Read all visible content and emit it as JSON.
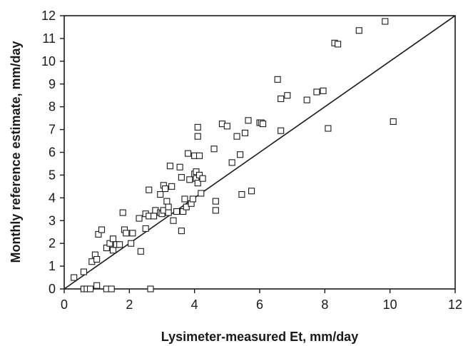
{
  "chart_data": {
    "type": "scatter",
    "title": "",
    "xlabel": "Lysimeter-measured Et, mm/day",
    "ylabel": "Monthly reference estimate, mm/day",
    "xlim": [
      0,
      12
    ],
    "ylim": [
      0,
      12
    ],
    "xticks": [
      "0",
      "2",
      "4",
      "6",
      "8",
      "10",
      "12"
    ],
    "yticks": [
      "0",
      "1",
      "2",
      "3",
      "4",
      "5",
      "6",
      "7",
      "8",
      "9",
      "10",
      "11",
      "12"
    ],
    "grid": false,
    "legend": "none",
    "reference_line": {
      "type": "1:1",
      "from": [
        0,
        0
      ],
      "to": [
        12,
        12
      ]
    },
    "marker": "open-square",
    "series": [
      {
        "points": [
          [
            0.3,
            0.5
          ],
          [
            0.6,
            0.75
          ],
          [
            0.6,
            0.0
          ],
          [
            0.7,
            0.0
          ],
          [
            0.8,
            0.0
          ],
          [
            0.85,
            1.2
          ],
          [
            0.95,
            1.5
          ],
          [
            1.0,
            0.15
          ],
          [
            1.0,
            1.3
          ],
          [
            1.05,
            2.4
          ],
          [
            1.15,
            2.6
          ],
          [
            1.3,
            1.8
          ],
          [
            1.3,
            0.0
          ],
          [
            1.4,
            2.0
          ],
          [
            1.45,
            0.0
          ],
          [
            1.5,
            2.2
          ],
          [
            1.5,
            1.7
          ],
          [
            1.6,
            1.95
          ],
          [
            1.7,
            1.95
          ],
          [
            1.8,
            3.35
          ],
          [
            1.85,
            2.6
          ],
          [
            1.9,
            2.45
          ],
          [
            2.05,
            2.0
          ],
          [
            2.1,
            2.45
          ],
          [
            2.3,
            3.1
          ],
          [
            2.35,
            1.65
          ],
          [
            2.5,
            3.3
          ],
          [
            2.5,
            2.65
          ],
          [
            2.6,
            4.35
          ],
          [
            2.6,
            3.2
          ],
          [
            2.65,
            0.0
          ],
          [
            2.75,
            3.2
          ],
          [
            2.8,
            3.45
          ],
          [
            2.95,
            3.35
          ],
          [
            2.95,
            4.15
          ],
          [
            3.0,
            3.3
          ],
          [
            3.05,
            4.55
          ],
          [
            3.05,
            3.45
          ],
          [
            3.1,
            4.4
          ],
          [
            3.15,
            3.85
          ],
          [
            3.2,
            3.6
          ],
          [
            3.2,
            3.35
          ],
          [
            3.25,
            5.4
          ],
          [
            3.3,
            4.5
          ],
          [
            3.35,
            3.0
          ],
          [
            3.45,
            3.4
          ],
          [
            3.55,
            5.35
          ],
          [
            3.6,
            4.9
          ],
          [
            3.6,
            2.55
          ],
          [
            3.65,
            3.4
          ],
          [
            3.7,
            3.95
          ],
          [
            3.75,
            3.6
          ],
          [
            3.8,
            5.95
          ],
          [
            3.85,
            4.8
          ],
          [
            3.9,
            3.75
          ],
          [
            3.95,
            3.95
          ],
          [
            4.0,
            5.85
          ],
          [
            4.0,
            5.05
          ],
          [
            4.05,
            5.15
          ],
          [
            4.05,
            4.85
          ],
          [
            4.1,
            7.1
          ],
          [
            4.1,
            6.7
          ],
          [
            4.1,
            4.65
          ],
          [
            4.15,
            5.85
          ],
          [
            4.15,
            5.0
          ],
          [
            4.2,
            4.2
          ],
          [
            4.25,
            4.85
          ],
          [
            4.6,
            6.15
          ],
          [
            4.65,
            3.85
          ],
          [
            4.65,
            3.45
          ],
          [
            4.85,
            7.25
          ],
          [
            5.0,
            7.15
          ],
          [
            5.15,
            5.55
          ],
          [
            5.3,
            6.7
          ],
          [
            5.4,
            5.9
          ],
          [
            5.45,
            4.15
          ],
          [
            5.55,
            6.85
          ],
          [
            5.65,
            7.4
          ],
          [
            5.75,
            4.3
          ],
          [
            6.0,
            7.3
          ],
          [
            6.05,
            7.3
          ],
          [
            6.1,
            7.25
          ],
          [
            6.55,
            9.2
          ],
          [
            6.65,
            6.95
          ],
          [
            6.65,
            8.35
          ],
          [
            6.85,
            8.5
          ],
          [
            7.45,
            8.3
          ],
          [
            7.75,
            8.65
          ],
          [
            7.95,
            8.7
          ],
          [
            8.1,
            7.05
          ],
          [
            8.3,
            10.8
          ],
          [
            8.4,
            10.75
          ],
          [
            9.05,
            11.35
          ],
          [
            9.85,
            11.75
          ],
          [
            10.1,
            7.35
          ]
        ]
      }
    ]
  }
}
